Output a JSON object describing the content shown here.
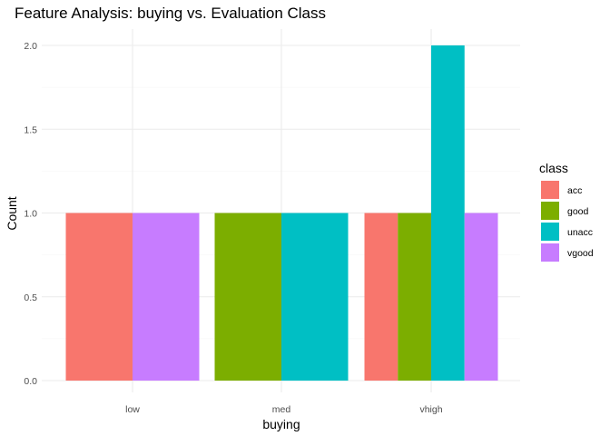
{
  "chart_data": {
    "type": "bar",
    "title": "Feature Analysis: buying vs. Evaluation Class",
    "xlabel": "buying",
    "ylabel": "Count",
    "categories": [
      "low",
      "med",
      "vhigh"
    ],
    "ylim": [
      0,
      2.0
    ],
    "yticks": [
      "0.0",
      "0.5",
      "1.0",
      "1.5",
      "2.0"
    ],
    "grid": true,
    "legend_title": "class",
    "legend_position": "right",
    "series": [
      {
        "name": "acc",
        "color": "#F8766D",
        "values": [
          1,
          null,
          1
        ]
      },
      {
        "name": "good",
        "color": "#7CAE00",
        "values": [
          null,
          1,
          1
        ]
      },
      {
        "name": "unacc",
        "color": "#00BFC4",
        "values": [
          null,
          1,
          2
        ]
      },
      {
        "name": "vgood",
        "color": "#C77CFF",
        "values": [
          1,
          null,
          1
        ]
      }
    ]
  }
}
